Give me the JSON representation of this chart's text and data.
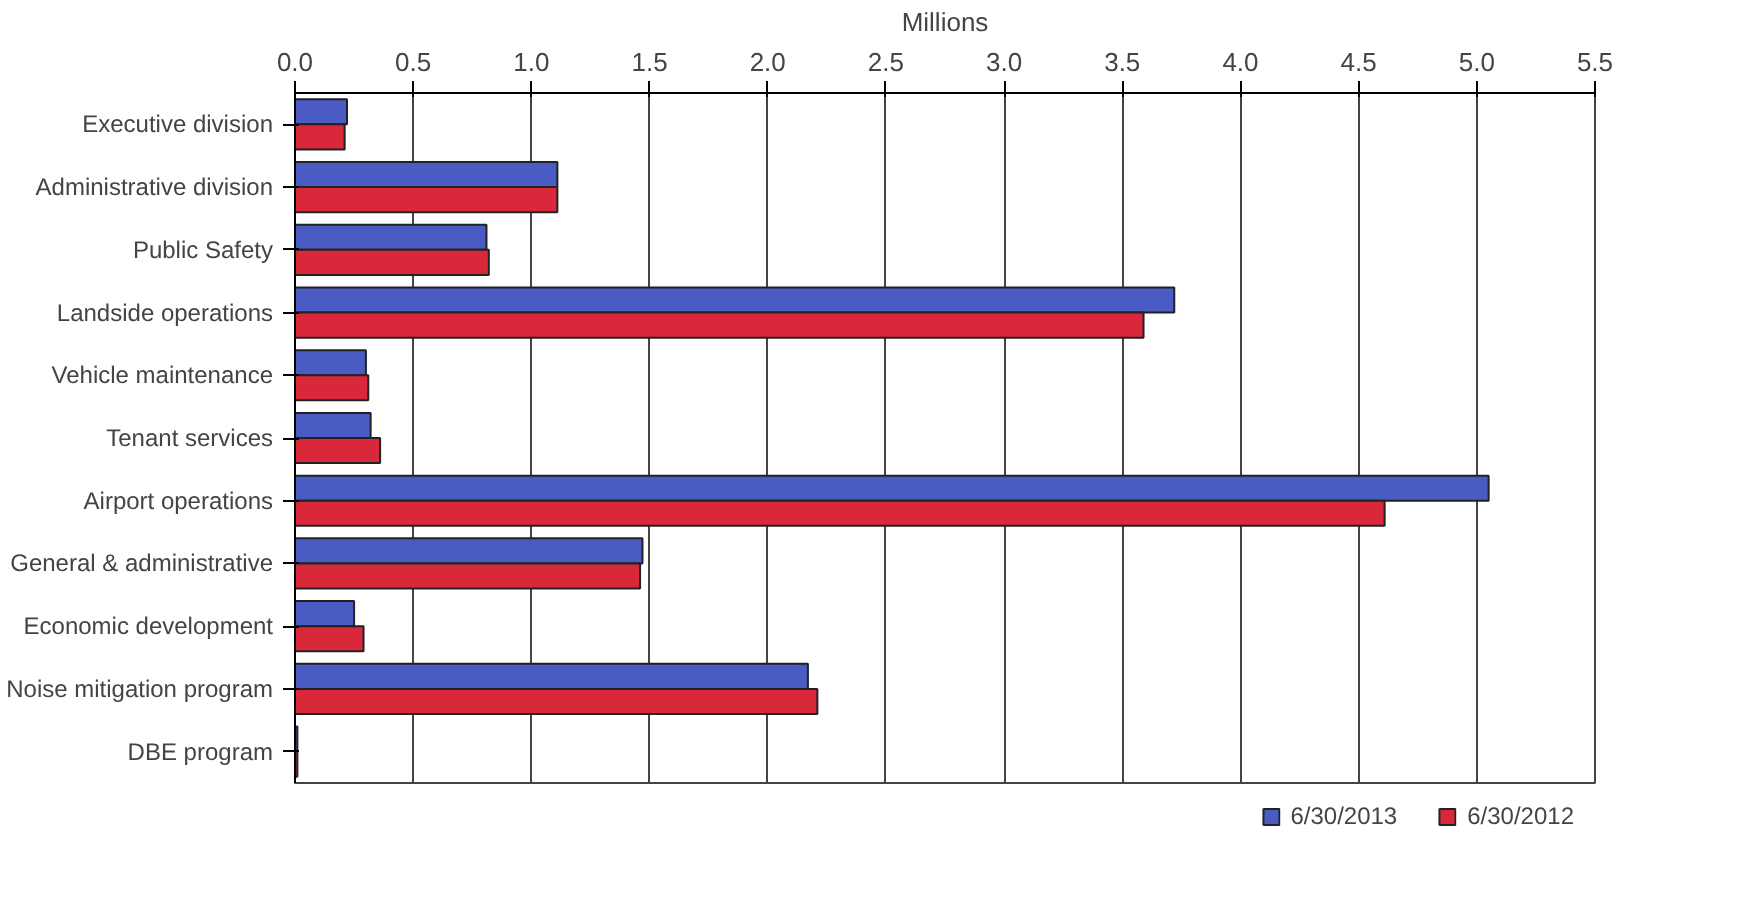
{
  "chart_data": {
    "type": "bar",
    "orientation": "horizontal",
    "xlabel": "Millions",
    "categories": [
      "Executive division",
      "Administrative division",
      "Public Safety",
      "Landside operations",
      "Vehicle maintenance",
      "Tenant services",
      "Airport operations",
      "General & administrative",
      "Economic development",
      "Noise mitigation program",
      "DBE program"
    ],
    "series": [
      {
        "name": "6/30/2013",
        "color": "#4a5cc4",
        "values": [
          0.22,
          1.11,
          0.81,
          3.72,
          0.3,
          0.32,
          5.05,
          1.47,
          0.25,
          2.17,
          0.01
        ]
      },
      {
        "name": "6/30/2012",
        "color": "#d8283a",
        "values": [
          0.21,
          1.11,
          0.82,
          3.59,
          0.31,
          0.36,
          4.61,
          1.46,
          0.29,
          2.21,
          0.01
        ]
      }
    ],
    "xlim": [
      0,
      5.5
    ],
    "xticks": [
      {
        "value": 0,
        "label": "0.0"
      },
      {
        "value": 0.5,
        "label": "0.5"
      },
      {
        "value": 1,
        "label": "1.0"
      },
      {
        "value": 1.5,
        "label": "1.5"
      },
      {
        "value": 2,
        "label": "2.0"
      },
      {
        "value": 2.5,
        "label": "2.5"
      },
      {
        "value": 3,
        "label": "3.0"
      },
      {
        "value": 3.5,
        "label": "3.5"
      },
      {
        "value": 4,
        "label": "4.0"
      },
      {
        "value": 4.5,
        "label": "4.5"
      },
      {
        "value": 5,
        "label": "5.0"
      },
      {
        "value": 5.5,
        "label": "5.5"
      }
    ],
    "grid": "x",
    "legend": "bottom"
  }
}
